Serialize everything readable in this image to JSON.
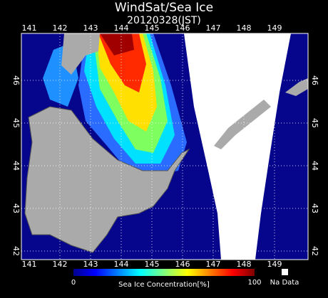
{
  "header": {
    "title": "WindSat/Sea Ice",
    "subtitle": "20120328(JST)"
  },
  "longitudes": [
    141,
    142,
    143,
    144,
    145,
    146,
    147,
    148,
    149
  ],
  "latitudes": [
    46,
    45,
    44,
    43,
    42
  ],
  "colorbar": {
    "min_label": "0",
    "max_label": "100",
    "title": "Sea Ice Concentration[%]",
    "no_data": "Na Data"
  }
}
